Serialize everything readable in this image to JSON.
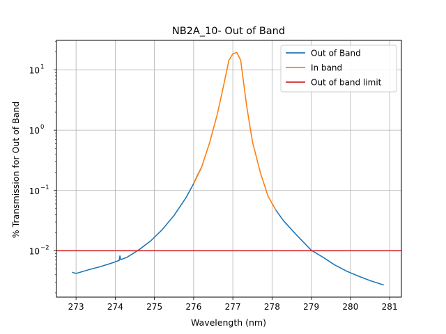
{
  "chart_data": {
    "type": "line",
    "title": "NB2A_10- Out of Band",
    "xlabel": "Wavelength (nm)",
    "ylabel": "% Transmission for Out of Band",
    "yscale": "log",
    "xlim": [
      272.5,
      281.3
    ],
    "ylim": [
      0.0017,
      31
    ],
    "grid": true,
    "legend_position": "top-right",
    "x_ticks": [
      {
        "value": 273,
        "label": "273"
      },
      {
        "value": 274,
        "label": "274"
      },
      {
        "value": 275,
        "label": "275"
      },
      {
        "value": 276,
        "label": "276"
      },
      {
        "value": 277,
        "label": "277"
      },
      {
        "value": 278,
        "label": "278"
      },
      {
        "value": 279,
        "label": "279"
      },
      {
        "value": 280,
        "label": "280"
      },
      {
        "value": 281,
        "label": "281"
      }
    ],
    "y_ticks": [
      {
        "value": 0.01,
        "base": "10",
        "exp": "−2"
      },
      {
        "value": 0.1,
        "base": "10",
        "exp": "−1"
      },
      {
        "value": 1,
        "base": "10",
        "exp": "0"
      },
      {
        "value": 10,
        "base": "10",
        "exp": "1"
      }
    ],
    "series": [
      {
        "name": "Out of Band",
        "color": "#1f77b4",
        "x": [
          272.9,
          273.0,
          273.3,
          273.6,
          273.9,
          274.1,
          274.12,
          274.14,
          274.3,
          274.6,
          274.9,
          275.2,
          275.5,
          275.8,
          276.0,
          276.1,
          276.2
        ],
        "y": [
          0.0044,
          0.0042,
          0.0048,
          0.0054,
          0.0062,
          0.0069,
          0.0082,
          0.0071,
          0.0078,
          0.0103,
          0.0145,
          0.0225,
          0.0385,
          0.075,
          0.13,
          0.18,
          0.24
        ]
      },
      {
        "name": "Out of Band",
        "color": "#1f77b4",
        "x": [
          278.1,
          278.3,
          278.6,
          279.0,
          279.3,
          279.6,
          279.9,
          280.2,
          280.5,
          280.85
        ],
        "y": [
          0.047,
          0.031,
          0.019,
          0.0102,
          0.0078,
          0.0058,
          0.0046,
          0.0038,
          0.0032,
          0.0027
        ]
      },
      {
        "name": "In band",
        "color": "#ff7f0e",
        "x": [
          276.0,
          276.2,
          276.4,
          276.6,
          276.75,
          276.9,
          277.0,
          277.1,
          277.2,
          277.35,
          277.5,
          277.7,
          277.9,
          278.1
        ],
        "y": [
          0.13,
          0.24,
          0.6,
          1.8,
          5.0,
          14.5,
          18.5,
          19.5,
          14.5,
          2.6,
          0.65,
          0.2,
          0.08,
          0.047
        ]
      }
    ],
    "hlines": [
      {
        "name": "Out of band limit",
        "color": "#d62728",
        "y": 0.01
      }
    ],
    "legend": [
      {
        "label": "Out of Band",
        "color": "#1f77b4"
      },
      {
        "label": "In band",
        "color": "#ff7f0e"
      },
      {
        "label": "Out of band limit",
        "color": "#d62728"
      }
    ]
  }
}
